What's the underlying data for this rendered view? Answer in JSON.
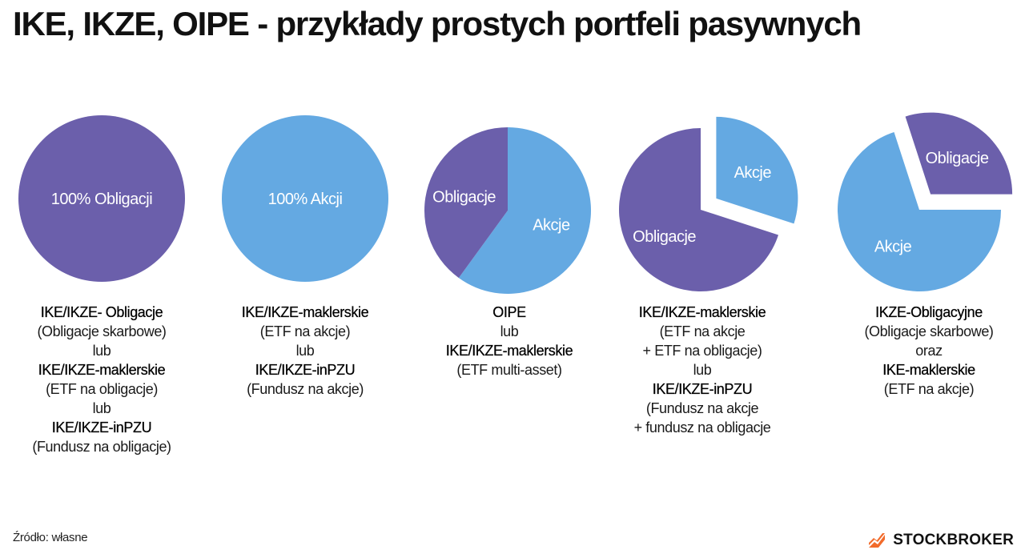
{
  "title": "IKE, IKZE, OIPE - przykłady prostych portfeli pasywnych",
  "source": "Źródło: własne",
  "brand": {
    "name": "STOCKBROKER",
    "logo_icon": "stockbroker-logo-icon",
    "logo_color": "#F26B2B"
  },
  "colors": {
    "obligacje": "#6B5FAB",
    "akcje": "#64A9E2",
    "label": "#FFFFFF"
  },
  "chart_data": [
    {
      "type": "pie",
      "slices": [
        {
          "label": "100% Obligacji",
          "value": 100,
          "color": "#6B5FAB",
          "exploded": false
        }
      ],
      "caption": [
        {
          "text": "IKE/IKZE- Obligacje",
          "bold": true
        },
        {
          "text": "(Obligacje skarbowe)",
          "bold": false
        },
        {
          "text": "lub",
          "bold": false
        },
        {
          "text": "IKE/IKZE-maklerskie",
          "bold": true
        },
        {
          "text": "(ETF na obligacje)",
          "bold": false
        },
        {
          "text": "lub",
          "bold": false
        },
        {
          "text": "IKE/IKZE-inPZU",
          "bold": true
        },
        {
          "text": "(Fundusz na obligacje)",
          "bold": false
        }
      ]
    },
    {
      "type": "pie",
      "slices": [
        {
          "label": "100% Akcji",
          "value": 100,
          "color": "#64A9E2",
          "exploded": false
        }
      ],
      "caption": [
        {
          "text": "IKE/IKZE-maklerskie",
          "bold": true
        },
        {
          "text": "(ETF na akcje)",
          "bold": false
        },
        {
          "text": "lub",
          "bold": false
        },
        {
          "text": "IKE/IKZE-inPZU",
          "bold": true
        },
        {
          "text": "(Fundusz na akcje)",
          "bold": false
        }
      ]
    },
    {
      "type": "pie",
      "slices": [
        {
          "label": "Akcje",
          "value": 60,
          "color": "#64A9E2",
          "exploded": false
        },
        {
          "label": "Obligacje",
          "value": 40,
          "color": "#6B5FAB",
          "exploded": false
        }
      ],
      "caption": [
        {
          "text": "OIPE",
          "bold": true
        },
        {
          "text": "lub",
          "bold": false
        },
        {
          "text": "IKE/IKZE-maklerskie",
          "bold": true
        },
        {
          "text": "(ETF multi-asset)",
          "bold": false
        }
      ]
    },
    {
      "type": "pie",
      "slices": [
        {
          "label": "Akcje",
          "value": 30,
          "color": "#64A9E2",
          "exploded": true
        },
        {
          "label": "Obligacje",
          "value": 70,
          "color": "#6B5FAB",
          "exploded": false
        }
      ],
      "caption": [
        {
          "text": "IKE/IKZE-maklerskie",
          "bold": true
        },
        {
          "text": "(ETF na akcje",
          "bold": false
        },
        {
          "text": "+ ETF na obligacje)",
          "bold": false
        },
        {
          "text": "lub",
          "bold": false
        },
        {
          "text": "IKE/IKZE-inPZU",
          "bold": true
        },
        {
          "text": "(Fundusz na akcje",
          "bold": false
        },
        {
          "text": "+ fundusz na obligacje",
          "bold": false
        }
      ]
    },
    {
      "type": "pie",
      "slices": [
        {
          "label": "Akcje",
          "value": 70,
          "color": "#64A9E2",
          "exploded": false
        },
        {
          "label": "Obligacje",
          "value": 30,
          "color": "#6B5FAB",
          "exploded": true
        }
      ],
      "caption": [
        {
          "text": "IKZE-Obligacyjne",
          "bold": true
        },
        {
          "text": "(Obligacje skarbowe)",
          "bold": false
        },
        {
          "text": "oraz",
          "bold": false
        },
        {
          "text": "IKE-maklerskie",
          "bold": true
        },
        {
          "text": "(ETF na akcje)",
          "bold": false
        }
      ]
    }
  ]
}
